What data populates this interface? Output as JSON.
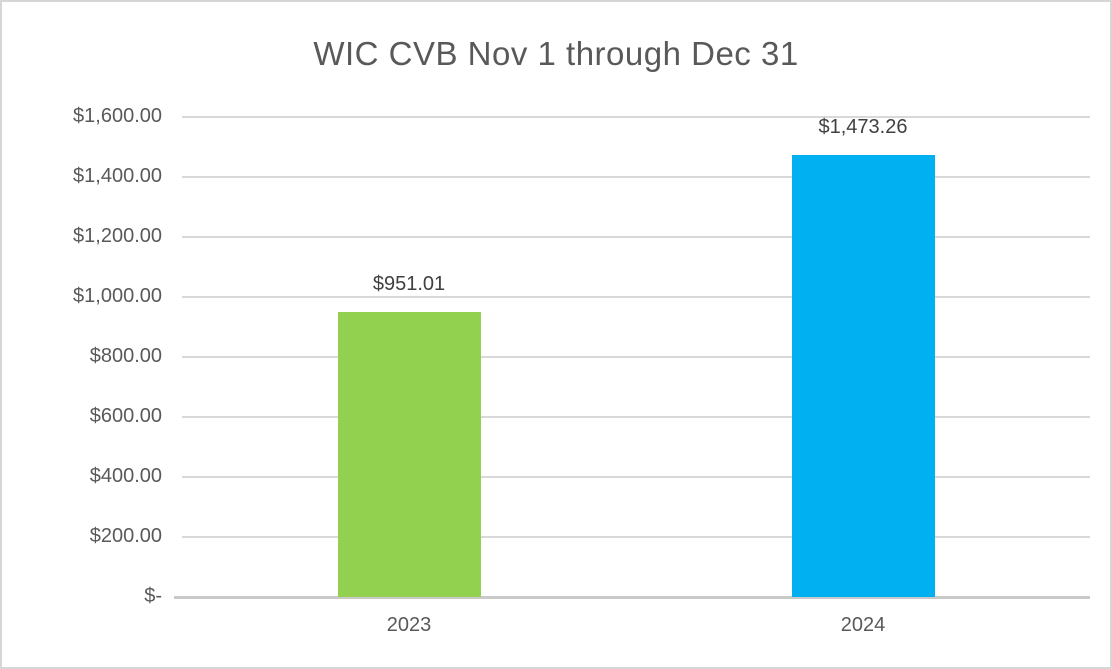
{
  "chart": {
    "title": "WIC CVB Nov 1 through Dec 31"
  },
  "chart_data": {
    "type": "bar",
    "title": "WIC CVB Nov 1 through Dec 31",
    "categories": [
      "2023",
      "2024"
    ],
    "values": [
      951.01,
      1473.26
    ],
    "value_labels": [
      "$951.01",
      "$1,473.26"
    ],
    "bar_colors": [
      "#92d050",
      "#00b0f0"
    ],
    "xlabel": "",
    "ylabel": "",
    "ylim": [
      0,
      1600
    ],
    "ytick_step": 200,
    "ytick_labels": [
      "$-",
      "$200.00",
      "$400.00",
      "$600.00",
      "$800.00",
      "$1,000.00",
      "$1,200.00",
      "$1,400.00",
      "$1,600.00"
    ],
    "grid": true,
    "legend": "none",
    "colors": {
      "grid": "#d9d9d9",
      "axis_line": "#c9c9c9",
      "title_text": "#595959",
      "tick_text": "#595959",
      "value_text": "#404040",
      "frame_border": "#d6d6d6"
    }
  }
}
